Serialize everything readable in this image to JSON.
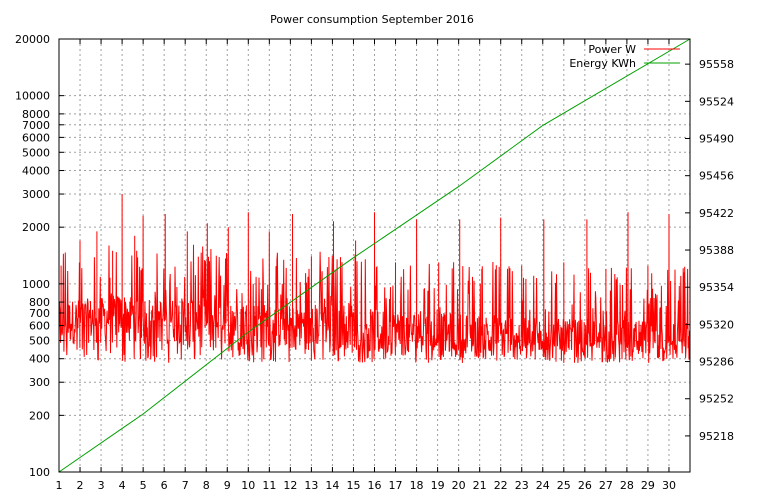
{
  "chart_data": {
    "type": "line",
    "title": "Power consumption September 2016",
    "xlim": [
      1,
      31
    ],
    "x_ticks": [
      1,
      2,
      3,
      4,
      5,
      6,
      7,
      8,
      9,
      10,
      11,
      12,
      13,
      14,
      15,
      16,
      17,
      18,
      19,
      20,
      21,
      22,
      23,
      24,
      25,
      26,
      27,
      28,
      29,
      30
    ],
    "y_left": {
      "scale": "log",
      "range": [
        100,
        20000
      ],
      "ticks": [
        {
          "value": 100,
          "label": "100"
        },
        {
          "value": 200,
          "label": "200"
        },
        {
          "value": 300,
          "label": "300"
        },
        {
          "value": 400,
          "label": "400"
        },
        {
          "value": 500,
          "label": "500"
        },
        {
          "value": 600,
          "label": "600"
        },
        {
          "value": 700,
          "label": "700"
        },
        {
          "value": 800,
          "label": "800"
        },
        {
          "value": 1000,
          "label": "1000"
        },
        {
          "value": 2000,
          "label": "2000"
        },
        {
          "value": 3000,
          "label": "3000"
        },
        {
          "value": 4000,
          "label": "4000"
        },
        {
          "value": 5000,
          "label": "5000"
        },
        {
          "value": 6000,
          "label": "6000"
        },
        {
          "value": 7000,
          "label": "7000"
        },
        {
          "value": 8000,
          "label": "8000"
        },
        {
          "value": 10000,
          "label": "10000"
        },
        {
          "value": 20000,
          "label": "20000"
        }
      ]
    },
    "y_right": {
      "scale": "linear",
      "range": [
        95185,
        95581
      ],
      "ticks": [
        95218,
        95252,
        95286,
        95320,
        95354,
        95388,
        95422,
        95456,
        95490,
        95524,
        95558
      ]
    },
    "grid": true,
    "legend_position": "top-right",
    "series": [
      {
        "name": "Power W",
        "color": "#ff0000",
        "axis": "left",
        "baseline_by_day": [
          {
            "x": 1,
            "y": 620
          },
          {
            "x": 2,
            "y": 640
          },
          {
            "x": 3,
            "y": 650
          },
          {
            "x": 4,
            "y": 680
          },
          {
            "x": 5,
            "y": 660
          },
          {
            "x": 6,
            "y": 640
          },
          {
            "x": 7,
            "y": 650
          },
          {
            "x": 8,
            "y": 640
          },
          {
            "x": 9,
            "y": 630
          },
          {
            "x": 10,
            "y": 620
          },
          {
            "x": 11,
            "y": 600
          },
          {
            "x": 12,
            "y": 590
          },
          {
            "x": 13,
            "y": 600
          },
          {
            "x": 14,
            "y": 620
          },
          {
            "x": 15,
            "y": 600
          },
          {
            "x": 16,
            "y": 560
          },
          {
            "x": 17,
            "y": 550
          },
          {
            "x": 18,
            "y": 550
          },
          {
            "x": 19,
            "y": 540
          },
          {
            "x": 20,
            "y": 540
          },
          {
            "x": 21,
            "y": 530
          },
          {
            "x": 22,
            "y": 540
          },
          {
            "x": 23,
            "y": 520
          },
          {
            "x": 24,
            "y": 510
          },
          {
            "x": 25,
            "y": 500
          },
          {
            "x": 26,
            "y": 500
          },
          {
            "x": 27,
            "y": 500
          },
          {
            "x": 28,
            "y": 490
          },
          {
            "x": 29,
            "y": 490
          },
          {
            "x": 30,
            "y": 500
          },
          {
            "x": 31,
            "y": 500
          }
        ],
        "min_level": 380,
        "peaks": [
          {
            "x": 1.1,
            "y": 1250
          },
          {
            "x": 2.0,
            "y": 1700
          },
          {
            "x": 2.8,
            "y": 1900
          },
          {
            "x": 3.55,
            "y": 1500
          },
          {
            "x": 4.0,
            "y": 3000
          },
          {
            "x": 4.6,
            "y": 1800
          },
          {
            "x": 5.0,
            "y": 2300
          },
          {
            "x": 6.05,
            "y": 2350
          },
          {
            "x": 7.1,
            "y": 1900
          },
          {
            "x": 8.05,
            "y": 2100
          },
          {
            "x": 9.05,
            "y": 2000
          },
          {
            "x": 10.0,
            "y": 2400
          },
          {
            "x": 11.0,
            "y": 1900
          },
          {
            "x": 12.1,
            "y": 2350
          },
          {
            "x": 13.0,
            "y": 1400
          },
          {
            "x": 14.05,
            "y": 2150
          },
          {
            "x": 15.1,
            "y": 1700
          },
          {
            "x": 16.0,
            "y": 2400
          },
          {
            "x": 17.0,
            "y": 1300
          },
          {
            "x": 18.0,
            "y": 2200
          },
          {
            "x": 19.05,
            "y": 1300
          },
          {
            "x": 20.05,
            "y": 2200
          },
          {
            "x": 21.1,
            "y": 1200
          },
          {
            "x": 22.0,
            "y": 2250
          },
          {
            "x": 23.0,
            "y": 1250
          },
          {
            "x": 24.05,
            "y": 2200
          },
          {
            "x": 25.0,
            "y": 1300
          },
          {
            "x": 26.1,
            "y": 2200
          },
          {
            "x": 27.0,
            "y": 1200
          },
          {
            "x": 28.05,
            "y": 2400
          },
          {
            "x": 29.0,
            "y": 1250
          },
          {
            "x": 30.0,
            "y": 2350
          },
          {
            "x": 30.7,
            "y": 1150
          }
        ]
      },
      {
        "name": "Energy KWh",
        "color": "#00a000",
        "axis": "right",
        "points": [
          {
            "x": 1,
            "y": 95185
          },
          {
            "x": 5,
            "y": 95238
          },
          {
            "x": 10,
            "y": 95313
          },
          {
            "x": 15,
            "y": 95381
          },
          {
            "x": 20,
            "y": 95446
          },
          {
            "x": 24,
            "y": 95502
          },
          {
            "x": 31,
            "y": 95581
          }
        ]
      }
    ]
  }
}
